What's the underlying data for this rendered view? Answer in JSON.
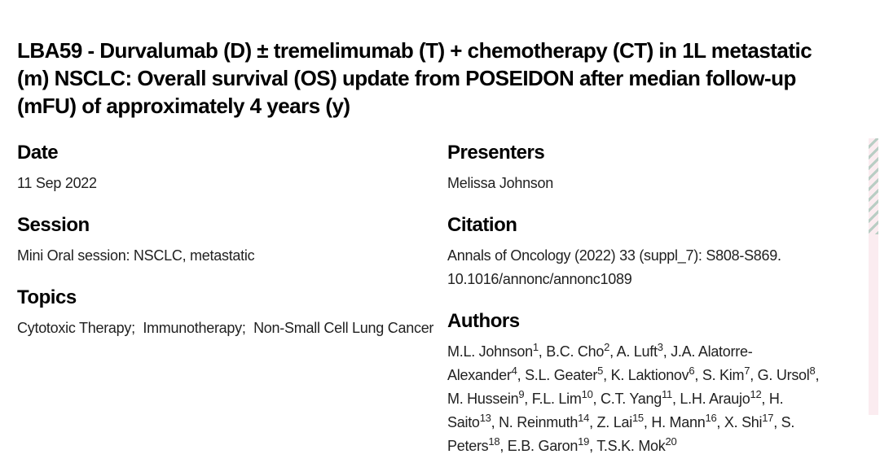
{
  "page_title": "LBA59 - Durvalumab (D) ± tremelimumab (T) + chemotherapy (CT) in 1L metastatic (m) NSCLC: Overall survival (OS) update from POSEIDON after median follow-up (mFU) of approximately 4 years (y)",
  "colors": {
    "heading_text": "#000000",
    "body_text": "#212121",
    "background": "#ffffff",
    "edge_strip_bg": "#fbecf0",
    "edge_strip_dash": "#b9cdc4"
  },
  "sections": {
    "date": {
      "label": "Date",
      "value": "11 Sep 2022"
    },
    "session": {
      "label": "Session",
      "value": "Mini Oral session: NSCLC, metastatic"
    },
    "topics": {
      "label": "Topics",
      "value": "Cytotoxic Therapy;  Immunotherapy;  Non-Small Cell Lung Cancer"
    },
    "presenters": {
      "label": "Presenters",
      "value": "Melissa Johnson"
    },
    "citation": {
      "label": "Citation",
      "value": "Annals of Oncology (2022) 33 (suppl_7): S808-S869. 10.1016/annonc/annonc1089"
    },
    "authors": {
      "label": "Authors",
      "separator": ", ",
      "list": [
        {
          "name": "M.L. Johnson",
          "sup": "1"
        },
        {
          "name": "B.C. Cho",
          "sup": "2"
        },
        {
          "name": "A. Luft",
          "sup": "3"
        },
        {
          "name": "J.A. Alatorre-Alexander",
          "sup": "4"
        },
        {
          "name": "S.L. Geater",
          "sup": "5"
        },
        {
          "name": "K. Laktionov",
          "sup": "6"
        },
        {
          "name": "S. Kim",
          "sup": "7"
        },
        {
          "name": "G. Ursol",
          "sup": "8"
        },
        {
          "name": "M. Hussein",
          "sup": "9"
        },
        {
          "name": "F.L. Lim",
          "sup": "10"
        },
        {
          "name": "C.T. Yang",
          "sup": "11"
        },
        {
          "name": "L.H. Araujo",
          "sup": "12"
        },
        {
          "name": "H. Saito",
          "sup": "13"
        },
        {
          "name": "N. Reinmuth",
          "sup": "14"
        },
        {
          "name": "Z. Lai",
          "sup": "15"
        },
        {
          "name": "H. Mann",
          "sup": "16"
        },
        {
          "name": "X. Shi",
          "sup": "17"
        },
        {
          "name": "S. Peters",
          "sup": "18"
        },
        {
          "name": "E.B. Garon",
          "sup": "19"
        },
        {
          "name": "T.S.K. Mok",
          "sup": "20"
        }
      ]
    }
  }
}
